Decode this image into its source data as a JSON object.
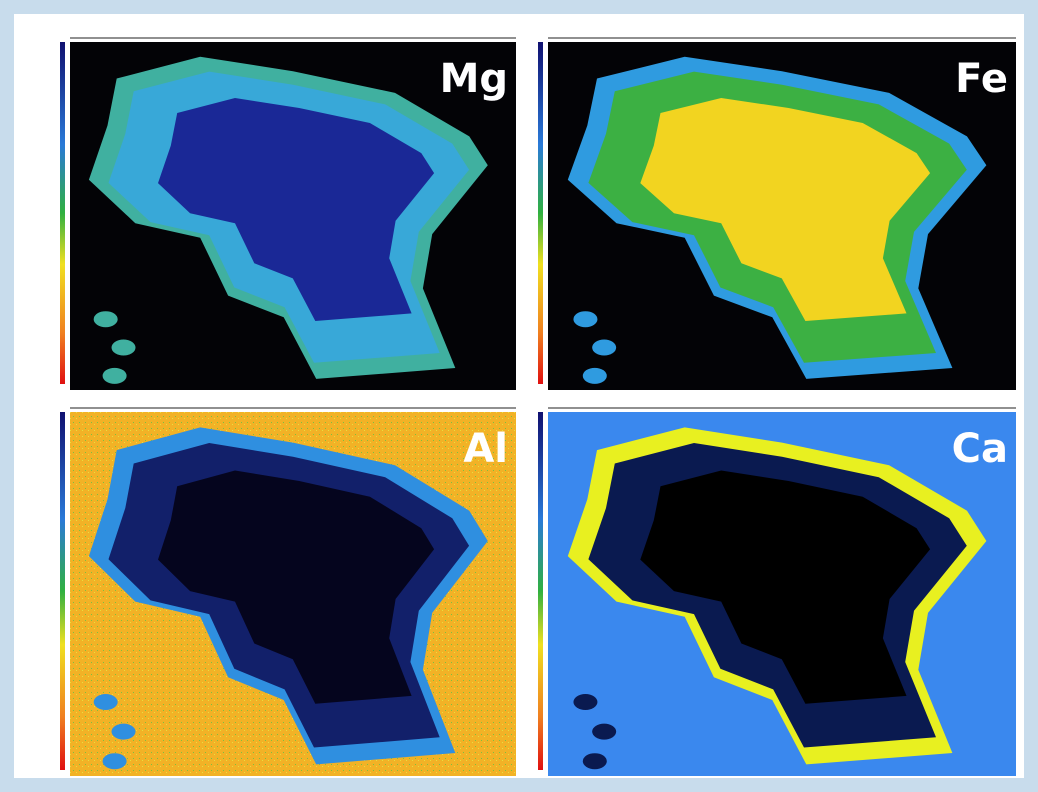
{
  "panels": [
    {
      "label": "Mg"
    },
    {
      "label": "Fe"
    },
    {
      "label": "Al"
    },
    {
      "label": "Ca"
    }
  ]
}
